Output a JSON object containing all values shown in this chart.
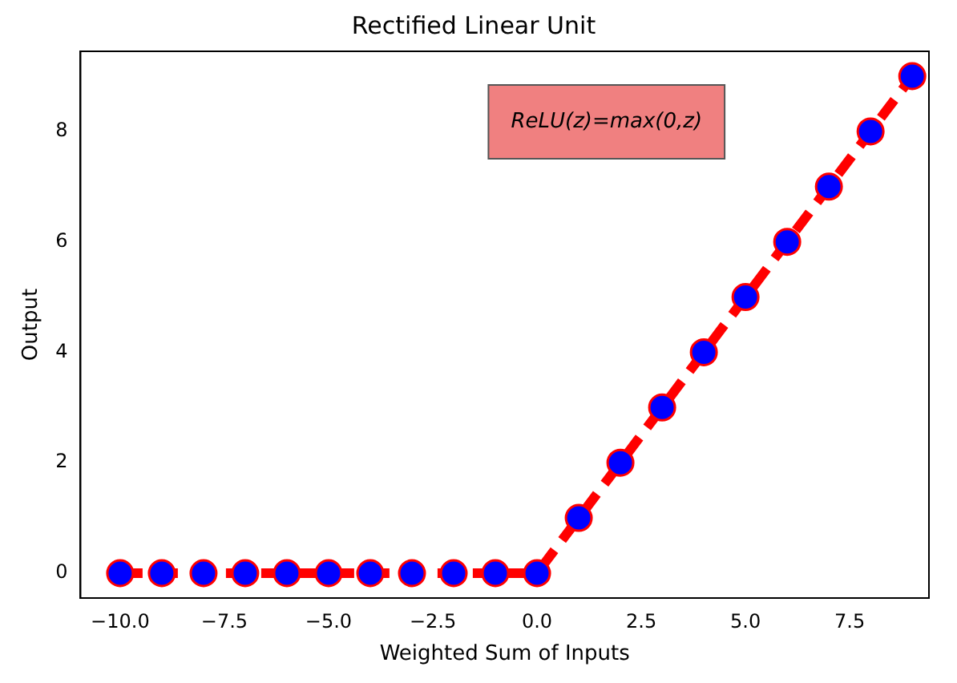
{
  "chart_data": {
    "type": "line",
    "title": "Rectified Linear Unit",
    "xlabel": "Weighted Sum of Inputs",
    "ylabel": "Output",
    "x": [
      -10,
      -9,
      -8,
      -7,
      -6,
      -5,
      -4,
      -3,
      -2,
      -1,
      0,
      1,
      2,
      3,
      4,
      5,
      6,
      7,
      8,
      9
    ],
    "series": [
      {
        "color": "#ff0000",
        "colors": [
          "#0000ff",
          "#0000ff",
          "#0000ff",
          "#0000ff",
          "#0000ff",
          "#0000ff",
          "#0000ff",
          "#0000ff",
          "#0000ff",
          "#0000ff",
          "#0000ff",
          "#0000ff",
          "#0000ff",
          "#0000ff",
          "#0000ff",
          "#0000ff",
          "#0000ff",
          "#0000ff",
          "#0000ff",
          "#0000ff"
        ],
        "values": [
          0,
          0,
          0,
          0,
          0,
          0,
          0,
          0,
          0,
          0,
          0,
          1,
          2,
          3,
          4,
          5,
          6,
          7,
          8,
          9
        ]
      }
    ],
    "xlim": [
      -10.95,
      9.4
    ],
    "ylim": [
      -0.45,
      9.45
    ],
    "xticks": [
      {
        "value": -10,
        "label": "−10.0"
      },
      {
        "value": -7.5,
        "label": "−7.5"
      },
      {
        "value": -5,
        "label": "−5.0"
      },
      {
        "value": -2.5,
        "label": "−2.5"
      },
      {
        "value": 0,
        "label": "0.0"
      },
      {
        "value": 2.5,
        "label": "2.5"
      },
      {
        "value": 5,
        "label": "5.0"
      },
      {
        "value": 7.5,
        "label": "7.5"
      }
    ],
    "yticks": [
      0,
      2,
      4,
      6,
      8
    ],
    "grid": false,
    "legend": false,
    "marker": "circle",
    "line_style": "dashed",
    "annotations": [
      "ReLU(z)=max(0,z)"
    ]
  }
}
